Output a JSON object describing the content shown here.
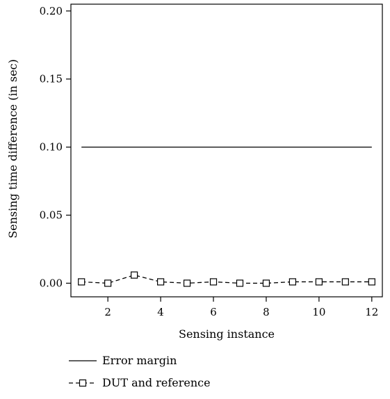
{
  "chart_data": {
    "type": "line",
    "title": "",
    "xlabel": "Sensing instance",
    "ylabel": "Sensing time difference (in sec)",
    "xlim": [
      0.6,
      12.4
    ],
    "ylim": [
      -0.01,
      0.205
    ],
    "xticks": [
      2,
      4,
      6,
      8,
      10,
      12
    ],
    "xtick_labels": [
      "2",
      "4",
      "6",
      "8",
      "10",
      "12"
    ],
    "yticks": [
      0.0,
      0.05,
      0.1,
      0.15,
      0.2
    ],
    "ytick_labels": [
      "0.00",
      "0.05",
      "0.10",
      "0.15",
      "0.20"
    ],
    "grid": false,
    "legend_position": "bottom, below plot",
    "series": [
      {
        "name": "Error margin",
        "style": "solid",
        "marker": "none",
        "color": "#000000",
        "x": [
          1,
          12
        ],
        "values": [
          0.1,
          0.1
        ]
      },
      {
        "name": "DUT and reference",
        "style": "dashed",
        "marker": "square",
        "color": "#000000",
        "x": [
          1,
          2,
          3,
          4,
          5,
          6,
          7,
          8,
          9,
          10,
          11,
          12
        ],
        "values": [
          0.001,
          0.0,
          0.006,
          0.001,
          0.0,
          0.001,
          0.0,
          0.0,
          0.001,
          0.001,
          0.001,
          0.001
        ]
      }
    ]
  }
}
